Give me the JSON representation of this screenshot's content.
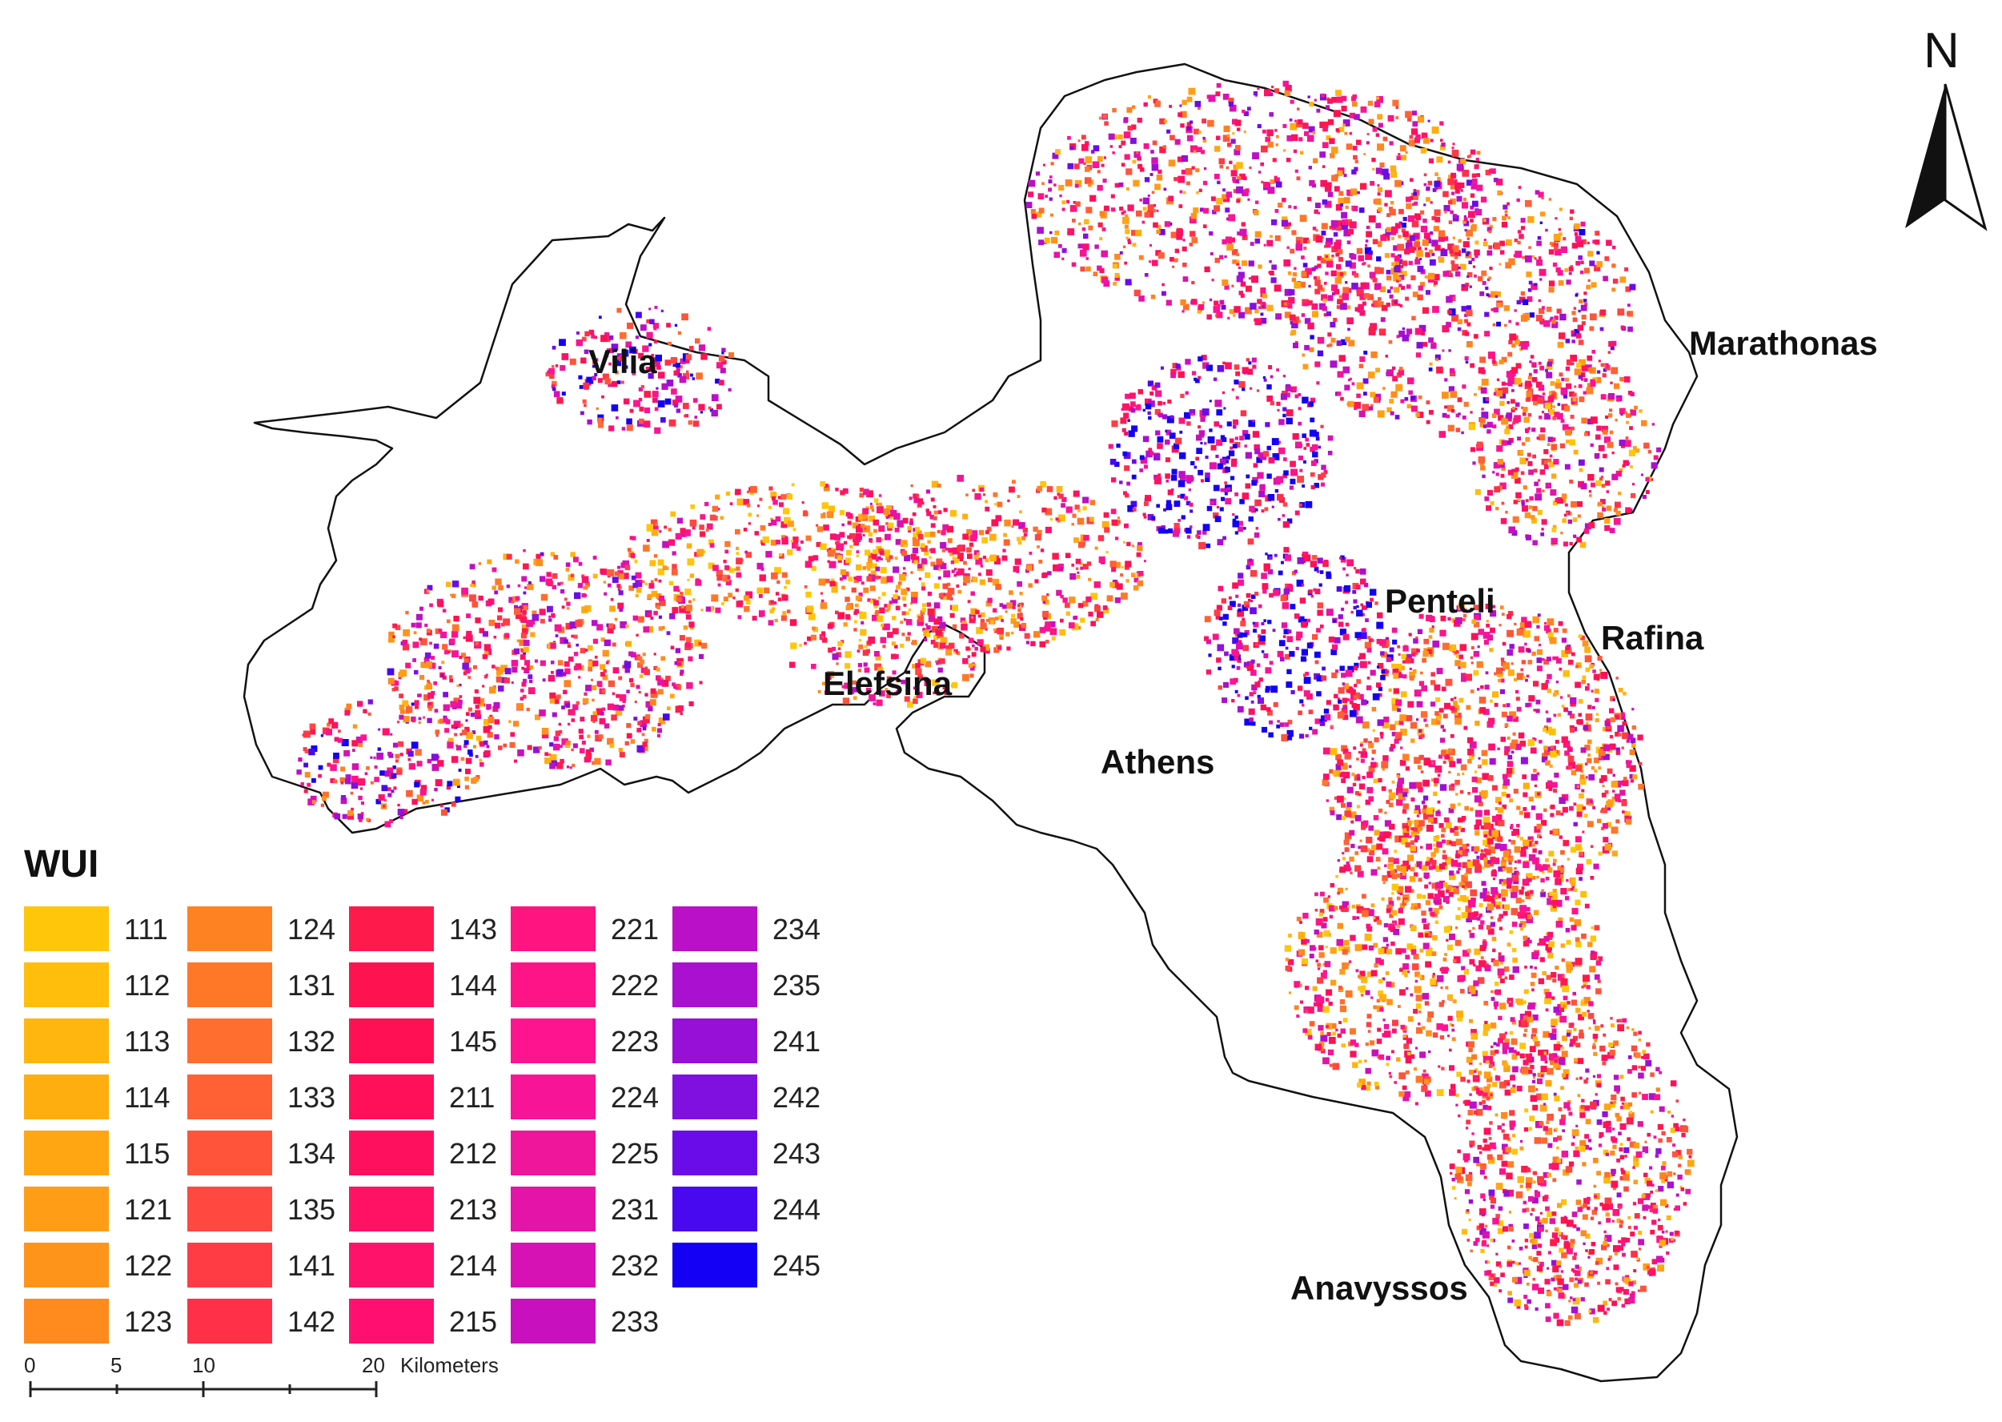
{
  "legend": {
    "title": "WUI",
    "items": [
      {
        "code": "111",
        "color": "#FFC60A"
      },
      {
        "code": "112",
        "color": "#FFBE0C"
      },
      {
        "code": "113",
        "color": "#FFB60E"
      },
      {
        "code": "114",
        "color": "#FFAE10"
      },
      {
        "code": "115",
        "color": "#FFA612"
      },
      {
        "code": "121",
        "color": "#FF9E16"
      },
      {
        "code": "122",
        "color": "#FF941A"
      },
      {
        "code": "123",
        "color": "#FF8A1E"
      },
      {
        "code": "124",
        "color": "#FF8222"
      },
      {
        "code": "131",
        "color": "#FF7828"
      },
      {
        "code": "132",
        "color": "#FF6E2E"
      },
      {
        "code": "133",
        "color": "#FF6034"
      },
      {
        "code": "134",
        "color": "#FF543A"
      },
      {
        "code": "135",
        "color": "#FF4840"
      },
      {
        "code": "141",
        "color": "#FF3C44"
      },
      {
        "code": "142",
        "color": "#FF3048"
      },
      {
        "code": "143",
        "color": "#FF1A4C"
      },
      {
        "code": "144",
        "color": "#FF1250"
      },
      {
        "code": "145",
        "color": "#FF1054"
      },
      {
        "code": "211",
        "color": "#FF1058"
      },
      {
        "code": "212",
        "color": "#FF105E"
      },
      {
        "code": "213",
        "color": "#FF1264"
      },
      {
        "code": "214",
        "color": "#FF126A"
      },
      {
        "code": "215",
        "color": "#FF1070"
      },
      {
        "code": "221",
        "color": "#FF1480"
      },
      {
        "code": "222",
        "color": "#FF1488"
      },
      {
        "code": "223",
        "color": "#FF1490"
      },
      {
        "code": "224",
        "color": "#F81496"
      },
      {
        "code": "225",
        "color": "#F0169C"
      },
      {
        "code": "231",
        "color": "#E414A8"
      },
      {
        "code": "232",
        "color": "#D612B4"
      },
      {
        "code": "233",
        "color": "#C810BE"
      },
      {
        "code": "234",
        "color": "#BA10C8"
      },
      {
        "code": "235",
        "color": "#AA10D0"
      },
      {
        "code": "241",
        "color": "#9610D8"
      },
      {
        "code": "242",
        "color": "#8010E0"
      },
      {
        "code": "243",
        "color": "#6A0CEA"
      },
      {
        "code": "244",
        "color": "#4808F0"
      },
      {
        "code": "245",
        "color": "#1400F4"
      }
    ]
  },
  "places": [
    {
      "id": "vilia",
      "name": "Vilia"
    },
    {
      "id": "marathonas",
      "name": "Marathonas"
    },
    {
      "id": "penteli",
      "name": "Penteli"
    },
    {
      "id": "rafina",
      "name": "Rafina"
    },
    {
      "id": "elefsina",
      "name": "Elefsina"
    },
    {
      "id": "athens",
      "name": "Athens"
    },
    {
      "id": "anavyssos",
      "name": "Anavyssos"
    }
  ],
  "north_arrow": {
    "letter": "N"
  },
  "scale_bar": {
    "ticks": [
      "0",
      "5",
      "10",
      "20"
    ],
    "unit": "Kilometers"
  }
}
